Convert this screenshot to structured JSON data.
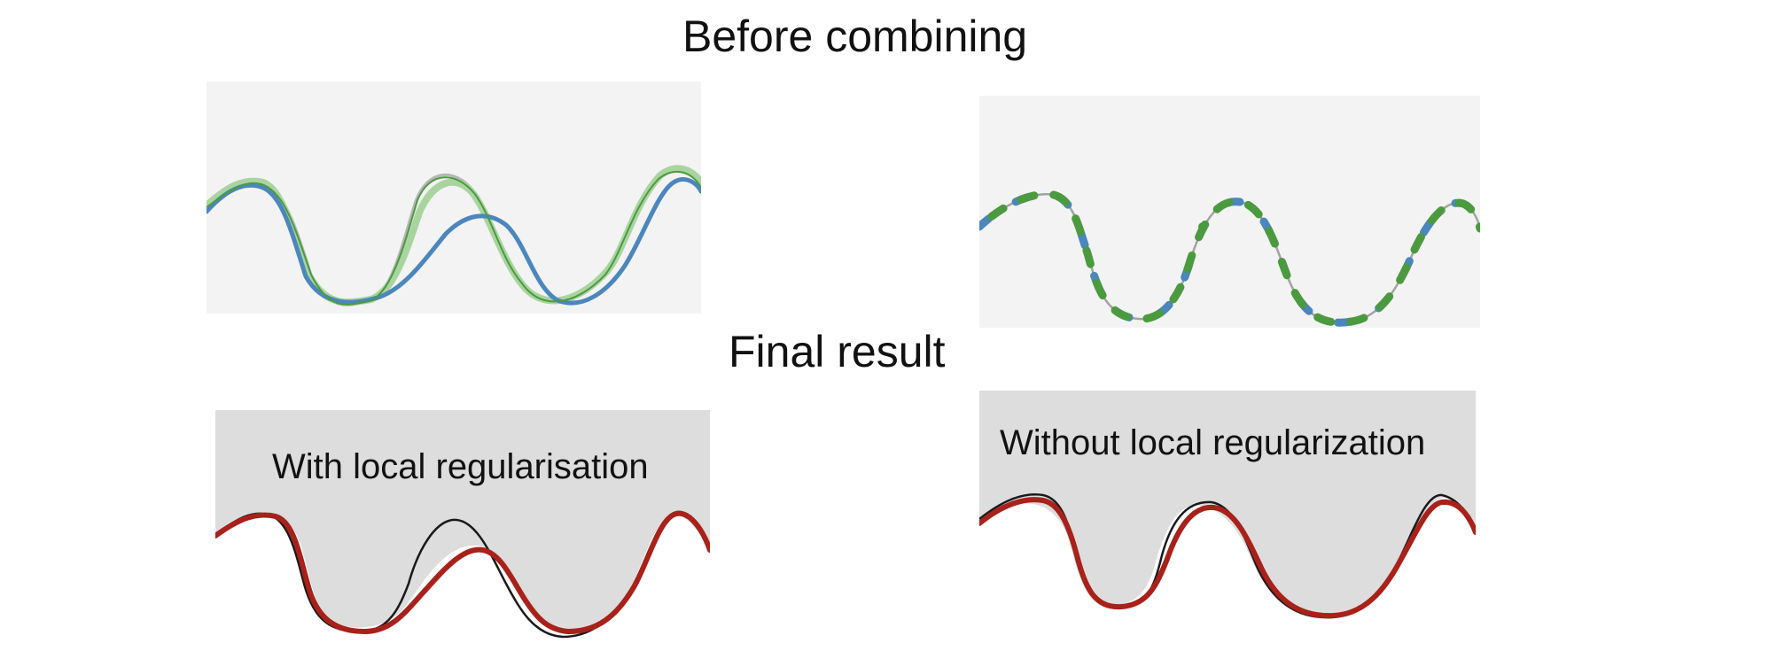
{
  "titles": {
    "before": "Before combining",
    "final": "Final result"
  },
  "panels": {
    "with_label": "With local regularisation",
    "without_label": "Without local regularization"
  },
  "colors": {
    "panel_light": "#f3f3f3",
    "panel_gray": "#dcdddc",
    "truth": "#1a1a1a",
    "truth_faint": "#b5b5b5",
    "blue": "#4b86bd",
    "green": "#4c9a3f",
    "green_faint": "#a9d4a0",
    "red": "#a8211a"
  }
}
